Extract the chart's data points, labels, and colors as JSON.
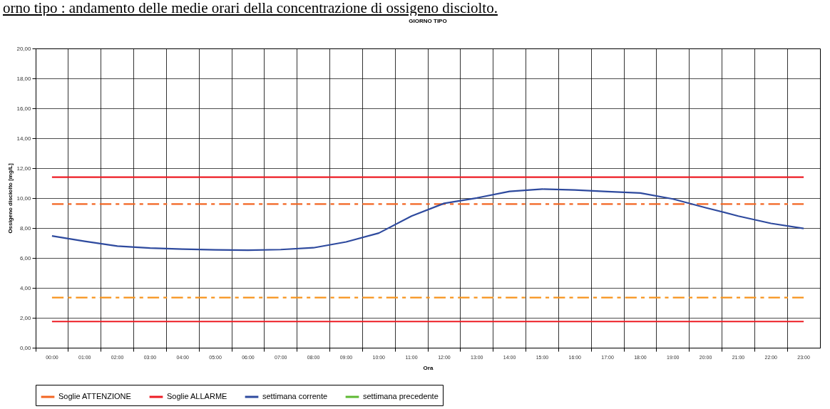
{
  "chart_data": {
    "type": "line",
    "title": "GIORNO TIPO",
    "annotations": [
      "orno tipo : andamento delle medie orari della concentrazione di ossigeno disciolto."
    ],
    "xlabel": "Ora",
    "ylabel": "Ossigeno disciolto [mg/L]",
    "categories": [
      "00:00",
      "01:00",
      "02:00",
      "03:00",
      "04:00",
      "05:00",
      "06:00",
      "07:00",
      "08:00",
      "09:00",
      "10:00",
      "11:00",
      "12:00",
      "13:00",
      "14:00",
      "15:00",
      "16:00",
      "17:00",
      "18:00",
      "19:00",
      "20:00",
      "21:00",
      "22:00",
      "23:00"
    ],
    "series": [
      {
        "name": "Soglie ATTENZIONE",
        "color": "#f26522",
        "line_style": "dashed",
        "values": [
          9.6,
          9.6,
          9.6,
          9.6,
          9.6,
          9.6,
          9.6,
          9.6,
          9.6,
          9.6,
          9.6,
          9.6,
          9.6,
          9.6,
          9.6,
          9.6,
          9.6,
          9.6,
          9.6,
          9.6,
          9.6,
          9.6,
          9.6,
          9.6
        ]
      },
      {
        "color": "#f7941d",
        "line_style": "dashed",
        "values": [
          3.35,
          3.35,
          3.35,
          3.35,
          3.35,
          3.35,
          3.35,
          3.35,
          3.35,
          3.35,
          3.35,
          3.35,
          3.35,
          3.35,
          3.35,
          3.35,
          3.35,
          3.35,
          3.35,
          3.35,
          3.35,
          3.35,
          3.35,
          3.35
        ]
      },
      {
        "name": "Soglie ALLARME",
        "color": "#ed1c24",
        "line_style": "solid",
        "values": [
          11.4,
          11.4,
          11.4,
          11.4,
          11.4,
          11.4,
          11.4,
          11.4,
          11.4,
          11.4,
          11.4,
          11.4,
          11.4,
          11.4,
          11.4,
          11.4,
          11.4,
          11.4,
          11.4,
          11.4,
          11.4,
          11.4,
          11.4,
          11.4
        ]
      },
      {
        "color": "#ed1c24",
        "line_style": "solid",
        "values": [
          1.75,
          1.75,
          1.75,
          1.75,
          1.75,
          1.75,
          1.75,
          1.75,
          1.75,
          1.75,
          1.75,
          1.75,
          1.75,
          1.75,
          1.75,
          1.75,
          1.75,
          1.75,
          1.75,
          1.75,
          1.75,
          1.75,
          1.75,
          1.75
        ]
      },
      {
        "name": "settimana corrente",
        "color": "#2e4a9e",
        "line_style": "solid",
        "values": [
          7.47,
          7.11,
          6.79,
          6.66,
          6.59,
          6.54,
          6.52,
          6.56,
          6.68,
          7.07,
          7.66,
          8.8,
          9.65,
          10.01,
          10.45,
          10.6,
          10.54,
          10.43,
          10.34,
          9.94,
          9.36,
          8.8,
          8.31,
          7.97
        ]
      },
      {
        "name": "settimana precedente",
        "color": "#5db832",
        "line_style": "solid",
        "values": [
          null,
          null,
          null,
          null,
          null,
          null,
          null,
          null,
          null,
          null,
          null,
          null,
          null,
          null,
          null,
          null,
          null,
          null,
          null,
          null,
          null,
          null,
          null,
          null
        ]
      }
    ],
    "ylim": [
      0,
      20
    ],
    "yticks": [
      {
        "value": 0,
        "label": "0,00"
      },
      {
        "value": 2,
        "label": "2,00"
      },
      {
        "value": 4,
        "label": "4,00"
      },
      {
        "value": 6,
        "label": "6,00"
      },
      {
        "value": 8,
        "label": "8,00"
      },
      {
        "value": 10,
        "label": "10,00"
      },
      {
        "value": 12,
        "label": "12,00"
      },
      {
        "value": 14,
        "label": "14,00"
      },
      {
        "value": 16,
        "label": "16,00"
      },
      {
        "value": 18,
        "label": "18,00"
      },
      {
        "value": 20,
        "label": "20,00"
      }
    ],
    "grid": true,
    "legend": "bottom",
    "marker": "none"
  }
}
